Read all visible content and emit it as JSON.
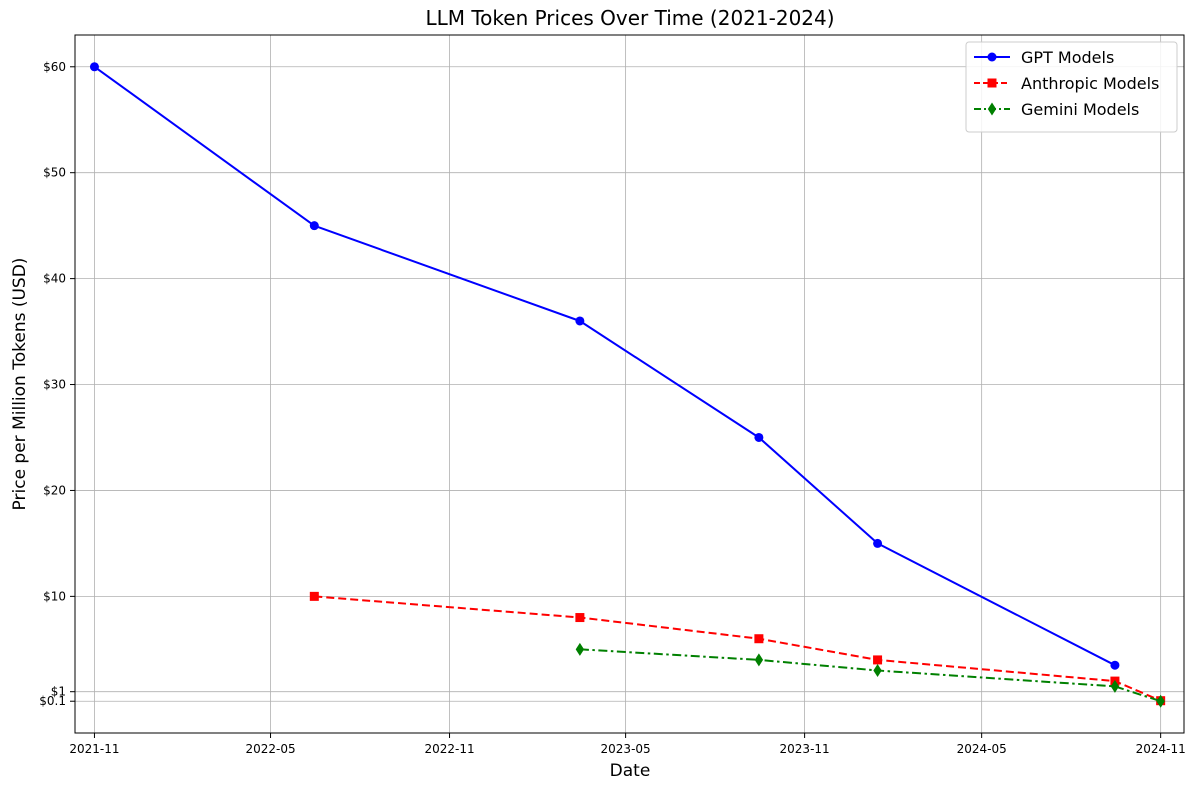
{
  "chart_data": {
    "type": "line",
    "title": "LLM Token Prices Over Time (2021-2024)",
    "xlabel": "Date",
    "ylabel": "Price per Million Tokens (USD)",
    "x_ticks": [
      "2021-11",
      "2022-05",
      "2022-11",
      "2023-05",
      "2023-11",
      "2024-05",
      "2024-11"
    ],
    "y_ticks": [
      {
        "value": 0.1,
        "label": "$0.1"
      },
      {
        "value": 1,
        "label": "$1"
      },
      {
        "value": 10,
        "label": "$10"
      },
      {
        "value": 20,
        "label": "$20"
      },
      {
        "value": 30,
        "label": "$30"
      },
      {
        "value": 40,
        "label": "$40"
      },
      {
        "value": 50,
        "label": "$50"
      },
      {
        "value": 60,
        "label": "$60"
      }
    ],
    "xlim": [
      "2021-10-12",
      "2024-11-25"
    ],
    "ylim": [
      -2.9,
      63
    ],
    "grid": true,
    "legend_position": "top-right",
    "series": [
      {
        "name": "GPT Models",
        "color": "#0000ff",
        "marker": "circle",
        "line_style": "solid",
        "points": [
          {
            "x": "2021-11-01",
            "y": 60
          },
          {
            "x": "2022-06-15",
            "y": 45
          },
          {
            "x": "2023-03-15",
            "y": 36
          },
          {
            "x": "2023-09-15",
            "y": 25
          },
          {
            "x": "2024-01-15",
            "y": 15
          },
          {
            "x": "2024-09-15",
            "y": 3.5
          }
        ]
      },
      {
        "name": "Anthropic Models",
        "color": "#ff0000",
        "marker": "square",
        "line_style": "dashed",
        "points": [
          {
            "x": "2022-06-15",
            "y": 10
          },
          {
            "x": "2023-03-15",
            "y": 8
          },
          {
            "x": "2023-09-15",
            "y": 6
          },
          {
            "x": "2024-01-15",
            "y": 4
          },
          {
            "x": "2024-09-15",
            "y": 2
          },
          {
            "x": "2024-11-01",
            "y": 0.15
          }
        ]
      },
      {
        "name": "Gemini Models",
        "color": "#008000",
        "marker": "diamond",
        "line_style": "dashdot",
        "points": [
          {
            "x": "2023-03-15",
            "y": 5
          },
          {
            "x": "2023-09-15",
            "y": 4
          },
          {
            "x": "2024-01-15",
            "y": 3
          },
          {
            "x": "2024-09-15",
            "y": 1.5
          },
          {
            "x": "2024-11-01",
            "y": 0.1
          }
        ]
      }
    ]
  }
}
